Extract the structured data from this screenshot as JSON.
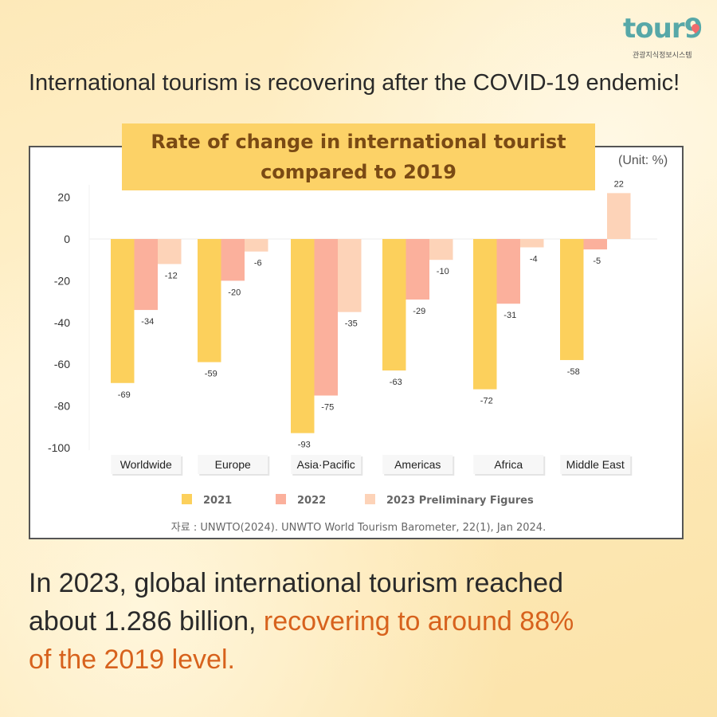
{
  "logo": {
    "text": "tour9",
    "subtitle": "관광지식정보시스템"
  },
  "headline": "International tourism is recovering after the COVID-19 endemic!",
  "unit_label": "(Unit: %)",
  "source": "자료 : UNWTO(2024). UNWTO World Tourism Barometer, 22(1), Jan 2024.",
  "summary": {
    "line1": "In 2023, global international tourism reached",
    "line2_plain": "about 1.286 billion, ",
    "line2_accent": "recovering to around 88%",
    "line3_accent": "of the 2019 level."
  },
  "colors": {
    "y2021": "#fcd05c",
    "y2022": "#fbb09c",
    "y2023": "#fdd3b8",
    "accent": "#d7621d",
    "title_band": "#fcd267"
  },
  "chart_data": {
    "type": "bar",
    "title": "Rate of change in international tourist compared to 2019",
    "title_lines": [
      "Rate of change in international tourist",
      "compared to 2019"
    ],
    "ylabel": "",
    "xlabel": "",
    "ylim": [
      -100,
      20
    ],
    "yticks": [
      20,
      0,
      -20,
      -40,
      -60,
      -80,
      -100
    ],
    "categories": [
      "Worldwide",
      "Europe",
      "Asia·Pacific",
      "Americas",
      "Africa",
      "Middle East"
    ],
    "series": [
      {
        "name": "2021",
        "values": [
          -69,
          -59,
          -93,
          -63,
          -72,
          -58
        ]
      },
      {
        "name": "2022",
        "values": [
          -34,
          -20,
          -75,
          -29,
          -31,
          -5
        ]
      },
      {
        "name": "2023 Preliminary Figures",
        "values": [
          -12,
          -6,
          -35,
          -10,
          -4,
          22
        ]
      }
    ],
    "legend_position": "bottom"
  }
}
